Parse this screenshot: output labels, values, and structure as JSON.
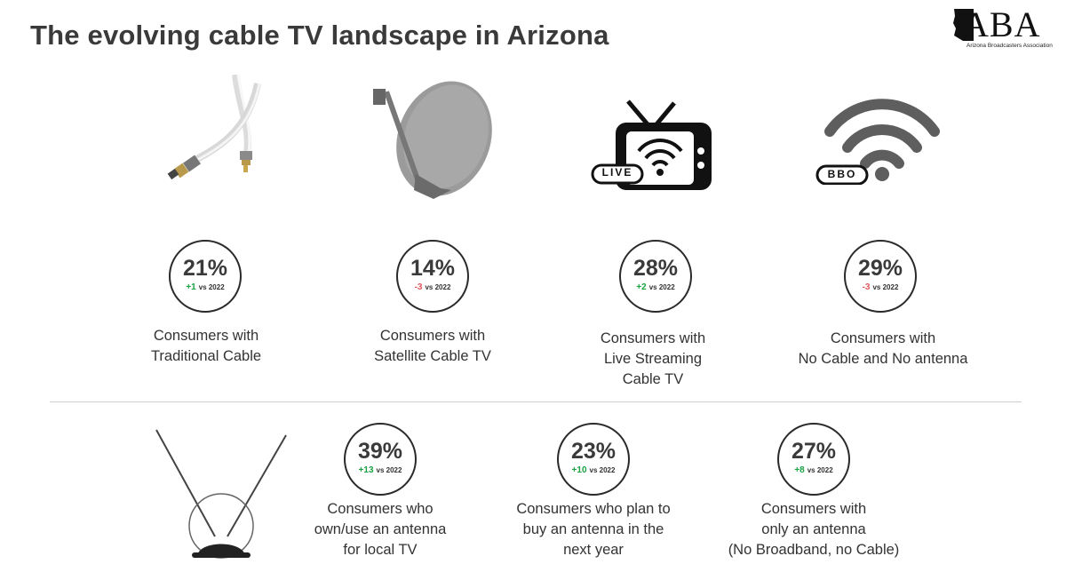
{
  "title": "The evolving cable TV landscape in Arizona",
  "logo": {
    "text": "ABA",
    "subtitle": "Arizona Broadcasters Association"
  },
  "icons": {
    "live_badge": "LIVE",
    "bbo_badge": "BBO"
  },
  "colors": {
    "positive": "#19a340",
    "negative": "#e2565a",
    "text": "#333333"
  },
  "stats": [
    {
      "value": "21%",
      "delta": "+1",
      "vs": "vs 2022",
      "label_lines": [
        "Consumers with",
        "Traditional Cable"
      ]
    },
    {
      "value": "14%",
      "delta": "-3",
      "vs": "vs 2022",
      "label_lines": [
        "Consumers with",
        "Satellite Cable TV"
      ]
    },
    {
      "value": "28%",
      "delta": "+2",
      "vs": "vs 2022",
      "label_lines": [
        "Consumers with",
        "Live Streaming",
        "Cable TV"
      ]
    },
    {
      "value": "29%",
      "delta": "-3",
      "vs": "vs 2022",
      "label_lines": [
        "Consumers with",
        "No Cable and No antenna"
      ]
    },
    {
      "value": "39%",
      "delta": "+13",
      "vs": "vs 2022",
      "label_lines": [
        "Consumers who",
        "own/use an antenna",
        "for local TV"
      ]
    },
    {
      "value": "23%",
      "delta": "+10",
      "vs": "vs 2022",
      "label_lines": [
        "Consumers who plan to",
        "buy an antenna in the",
        "next year"
      ]
    },
    {
      "value": "27%",
      "delta": "+8",
      "vs": "vs 2022",
      "label_lines": [
        "Consumers with",
        "only an antenna",
        "(No Broadband, no Cable)"
      ]
    }
  ]
}
